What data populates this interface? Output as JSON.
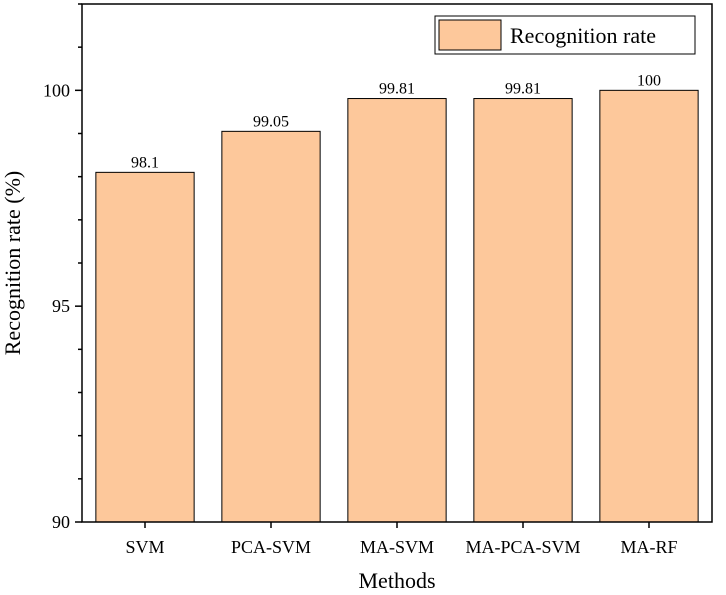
{
  "chart_data": {
    "type": "bar",
    "categories": [
      "SVM",
      "PCA-SVM",
      "MA-SVM",
      "MA-PCA-SVM",
      "MA-RF"
    ],
    "values": [
      98.1,
      99.05,
      99.81,
      99.81,
      100
    ],
    "value_labels": [
      "98.1",
      "99.05",
      "99.81",
      "99.81",
      "100"
    ],
    "series": [
      {
        "name": "Recognition rate",
        "values": [
          98.1,
          99.05,
          99.81,
          99.81,
          100
        ]
      }
    ],
    "xlabel": "Methods",
    "ylabel": "Recognition rate (%)",
    "ylim": [
      90,
      102
    ],
    "yticks": [
      90,
      95,
      100
    ],
    "grid": false,
    "legend_position": "top-right",
    "bar_color": "#FDC89B",
    "bar_edge_color": "#000000"
  }
}
